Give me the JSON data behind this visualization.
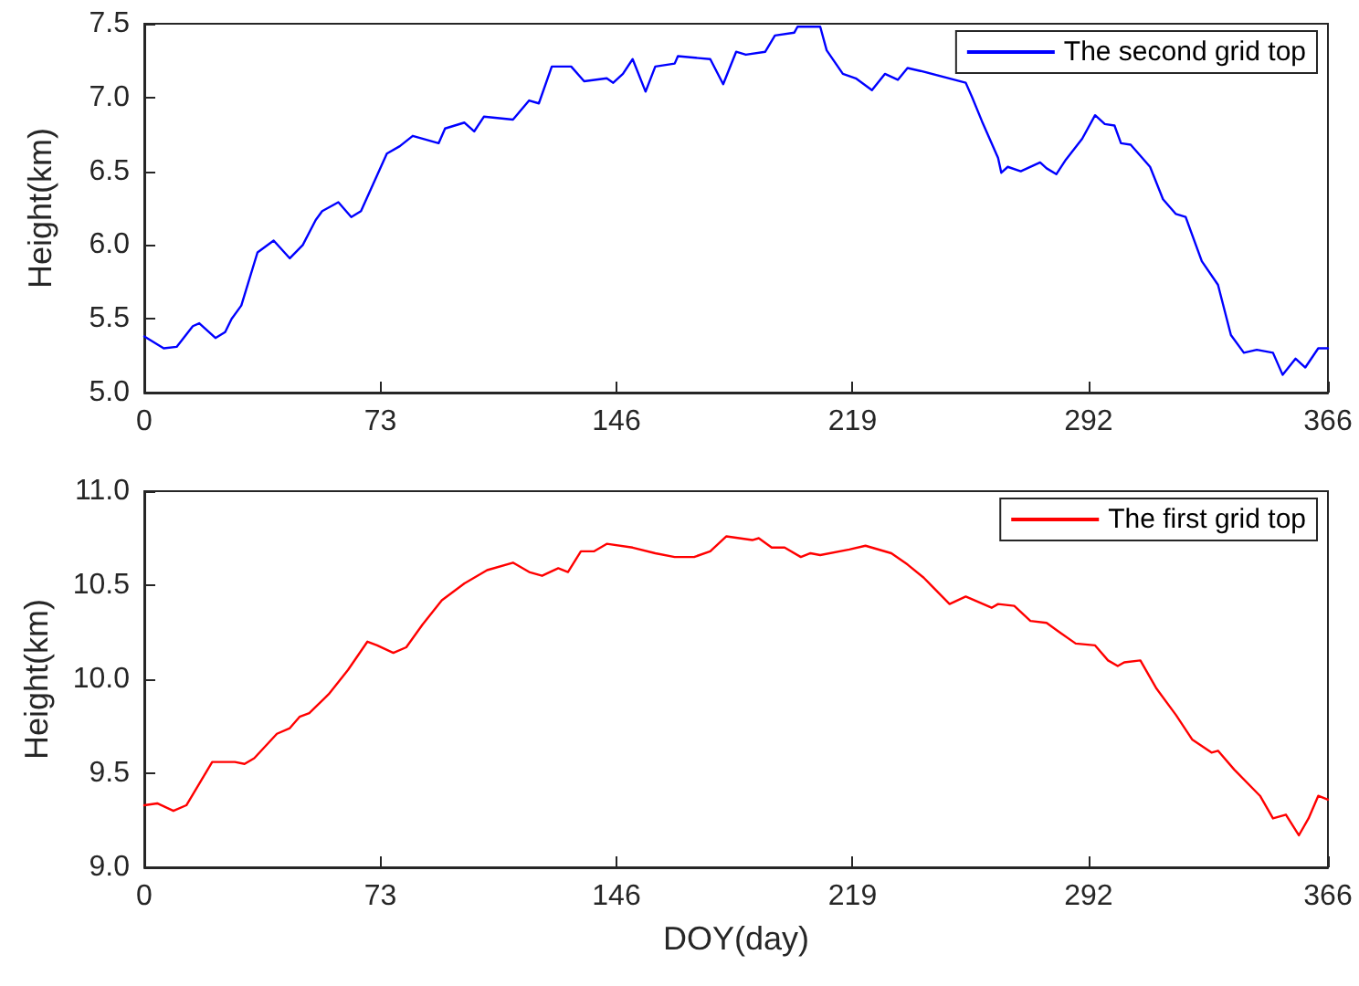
{
  "chart_data": [
    {
      "type": "line",
      "ylabel": "Height(km)",
      "xlim": [
        0,
        366
      ],
      "xticks": [
        0,
        73,
        146,
        219,
        292,
        366
      ],
      "ylim": [
        5.0,
        7.5
      ],
      "yticks": [
        {
          "value": 5.0,
          "label": "5.0"
        },
        {
          "value": 5.5,
          "label": "5.5"
        },
        {
          "value": 6.0,
          "label": "6.0"
        },
        {
          "value": 6.5,
          "label": "6.5"
        },
        {
          "value": 7.0,
          "label": "7.0"
        },
        {
          "value": 7.5,
          "label": "7.5"
        }
      ],
      "legend": "top right",
      "grid": false,
      "line_style": "solid",
      "marker": "none",
      "x": [
        0,
        6,
        10,
        15,
        17,
        22,
        25,
        27,
        30,
        35,
        40,
        45,
        49,
        53,
        55,
        60,
        64,
        67,
        75,
        79,
        83,
        91,
        93,
        99,
        102,
        105,
        114,
        119,
        122,
        126,
        132,
        136,
        143,
        145,
        148,
        151,
        155,
        158,
        164,
        165,
        175,
        179,
        183,
        186,
        192,
        195,
        201,
        202,
        209,
        211,
        216,
        220,
        225,
        229,
        233,
        236,
        240,
        254,
        256,
        259,
        264,
        265,
        267,
        271,
        277,
        279,
        282,
        285,
        290,
        294,
        297,
        300,
        302,
        305,
        311,
        315,
        319,
        322,
        327,
        332,
        336,
        340,
        344,
        349,
        352,
        356,
        359,
        363,
        366
      ],
      "series": [
        {
          "name": "The second grid top",
          "color": "#0000ff",
          "values": [
            5.38,
            5.3,
            5.31,
            5.45,
            5.47,
            5.37,
            5.41,
            5.5,
            5.59,
            5.95,
            6.03,
            5.91,
            6.0,
            6.17,
            6.23,
            6.29,
            6.19,
            6.23,
            6.62,
            6.67,
            6.74,
            6.69,
            6.79,
            6.83,
            6.77,
            6.87,
            6.85,
            6.98,
            6.96,
            7.21,
            7.21,
            7.11,
            7.13,
            7.1,
            7.16,
            7.26,
            7.04,
            7.21,
            7.23,
            7.28,
            7.26,
            7.09,
            7.31,
            7.29,
            7.31,
            7.42,
            7.44,
            7.48,
            7.48,
            7.32,
            7.16,
            7.13,
            7.05,
            7.16,
            7.12,
            7.2,
            7.18,
            7.1,
            7.0,
            6.84,
            6.59,
            6.49,
            6.53,
            6.5,
            6.56,
            6.52,
            6.48,
            6.58,
            6.72,
            6.88,
            6.82,
            6.81,
            6.69,
            6.68,
            6.53,
            6.31,
            6.21,
            6.19,
            5.89,
            5.73,
            5.39,
            5.27,
            5.29,
            5.27,
            5.12,
            5.23,
            5.17,
            5.3,
            5.3
          ]
        }
      ]
    },
    {
      "type": "line",
      "xlabel": "DOY(day)",
      "ylabel": "Height(km)",
      "xlim": [
        0,
        366
      ],
      "xticks": [
        0,
        73,
        146,
        219,
        292,
        366
      ],
      "ylim": [
        9.0,
        11.0
      ],
      "yticks": [
        {
          "value": 9.0,
          "label": "9.0"
        },
        {
          "value": 9.5,
          "label": "9.5"
        },
        {
          "value": 10.0,
          "label": "10.0"
        },
        {
          "value": 10.5,
          "label": "10.5"
        },
        {
          "value": 11.0,
          "label": "11.0"
        }
      ],
      "legend": "top right",
      "grid": false,
      "line_style": "solid",
      "marker": "none",
      "x": [
        0,
        4,
        9,
        13,
        21,
        28,
        31,
        34,
        41,
        45,
        48,
        51,
        57,
        63,
        69,
        72,
        77,
        81,
        86,
        92,
        99,
        106,
        114,
        119,
        123,
        128,
        131,
        135,
        139,
        143,
        151,
        158,
        164,
        170,
        175,
        180,
        188,
        190,
        194,
        198,
        203,
        206,
        209,
        218,
        223,
        231,
        236,
        241,
        249,
        254,
        262,
        264,
        269,
        274,
        279,
        283,
        288,
        294,
        298,
        301,
        303,
        308,
        313,
        319,
        324,
        330,
        332,
        337,
        345,
        349,
        353,
        357,
        360,
        363,
        366
      ],
      "series": [
        {
          "name": "The first grid top",
          "color": "#ff0000",
          "values": [
            9.33,
            9.34,
            9.3,
            9.33,
            9.56,
            9.56,
            9.55,
            9.58,
            9.71,
            9.74,
            9.8,
            9.82,
            9.92,
            10.05,
            10.2,
            10.18,
            10.14,
            10.17,
            10.29,
            10.42,
            10.51,
            10.58,
            10.62,
            10.57,
            10.55,
            10.59,
            10.57,
            10.68,
            10.68,
            10.72,
            10.7,
            10.67,
            10.65,
            10.65,
            10.68,
            10.76,
            10.74,
            10.75,
            10.7,
            10.7,
            10.65,
            10.67,
            10.66,
            10.69,
            10.71,
            10.67,
            10.61,
            10.54,
            10.4,
            10.44,
            10.38,
            10.4,
            10.39,
            10.31,
            10.3,
            10.25,
            10.19,
            10.18,
            10.1,
            10.07,
            10.09,
            10.1,
            9.95,
            9.81,
            9.68,
            9.61,
            9.62,
            9.52,
            9.38,
            9.26,
            9.28,
            9.17,
            9.26,
            9.38,
            9.36
          ]
        }
      ]
    }
  ]
}
